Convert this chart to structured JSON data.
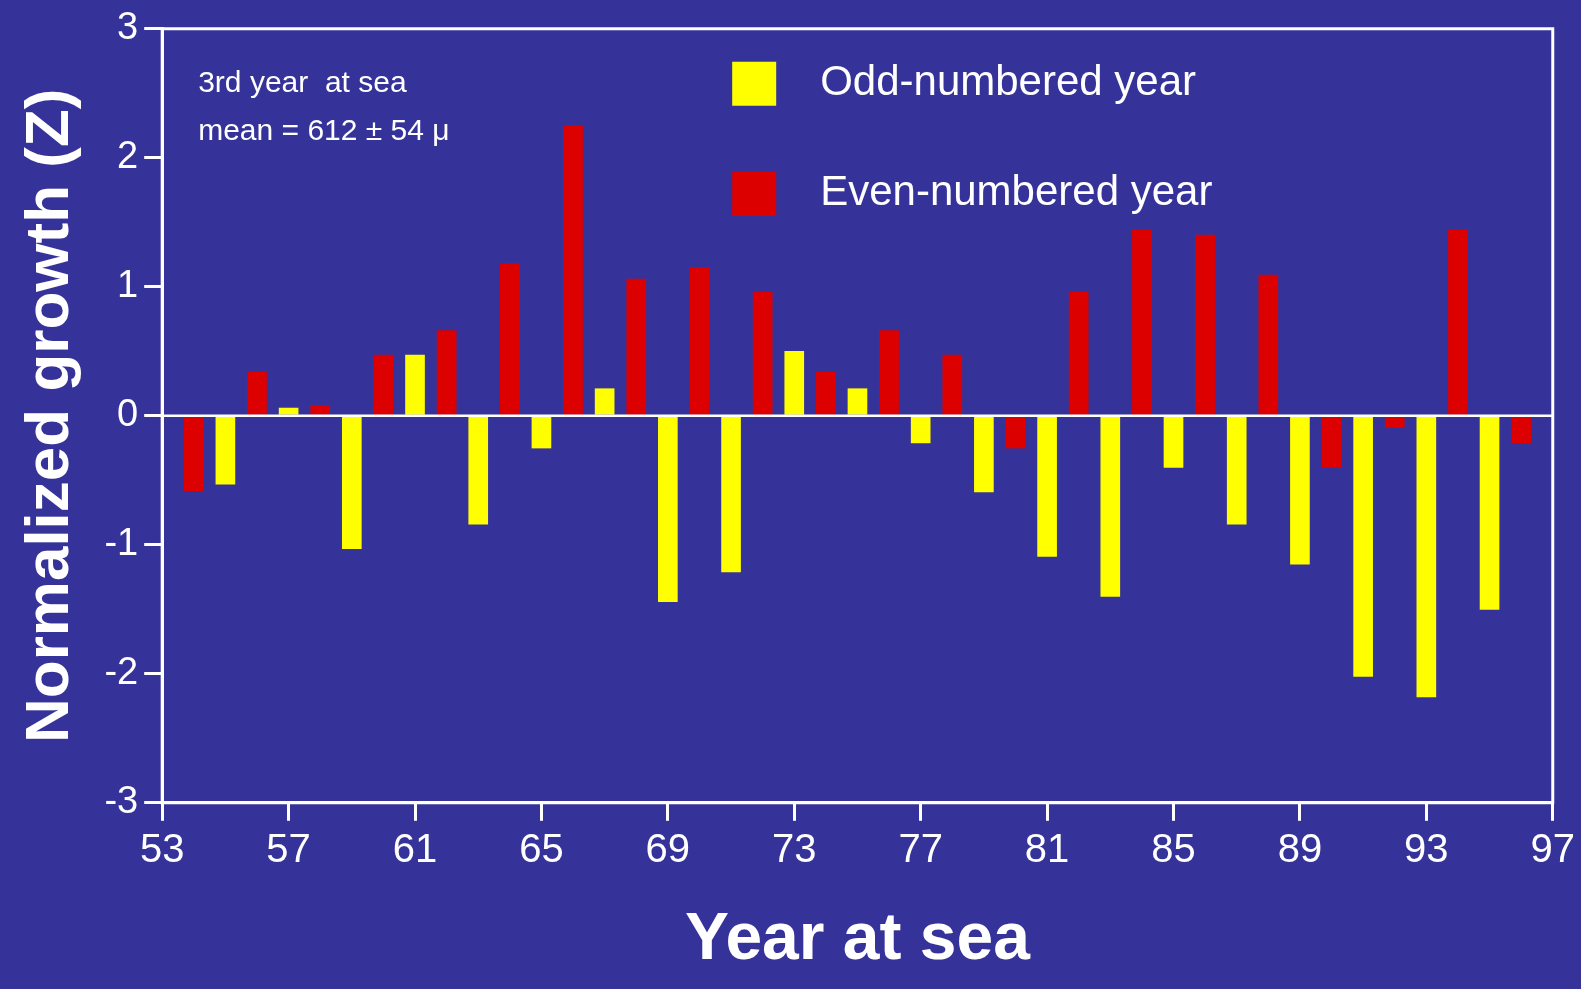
{
  "chart_data": {
    "type": "bar",
    "xlabel": "Year at sea",
    "ylabel": "Normalized growth (Z)",
    "annotations": [
      "3rd year  at sea",
      "mean = 612 ± 54 μ"
    ],
    "xlim": [
      53,
      97
    ],
    "xticks": [
      53,
      57,
      61,
      65,
      69,
      73,
      77,
      81,
      85,
      89,
      93,
      97
    ],
    "ylim": [
      -3,
      3
    ],
    "yticks": [
      -3,
      -2,
      -1,
      0,
      1,
      2,
      3
    ],
    "series": [
      {
        "name": "Odd-numbered year",
        "color": "#ffff00",
        "x": [
          55,
          57,
          59,
          61,
          63,
          65,
          67,
          69,
          71,
          73,
          75,
          77,
          79,
          81,
          83,
          85,
          87,
          89,
          91,
          93,
          95
        ],
        "values": [
          -0.53,
          0.06,
          -1.03,
          0.47,
          -0.84,
          -0.25,
          0.21,
          -1.44,
          -1.21,
          0.5,
          0.21,
          -0.21,
          -0.59,
          -1.09,
          -1.4,
          -0.4,
          -0.84,
          -1.15,
          -2.02,
          -2.18,
          -1.5
        ]
      },
      {
        "name": "Even-numbered year",
        "color": "#dd0000",
        "x": [
          54,
          56,
          58,
          60,
          62,
          64,
          66,
          68,
          70,
          72,
          74,
          76,
          78,
          80,
          82,
          84,
          86,
          88,
          90,
          92,
          94,
          96
        ],
        "values": [
          -0.58,
          0.34,
          0.08,
          0.47,
          0.66,
          1.18,
          2.25,
          1.06,
          1.15,
          0.96,
          0.34,
          0.66,
          0.47,
          -0.25,
          0.96,
          1.44,
          1.4,
          1.09,
          -0.4,
          -0.09,
          1.44,
          -0.21
        ]
      }
    ],
    "ref_lines": [
      {
        "axis": "y",
        "value": 0,
        "color": "#ffffff"
      }
    ],
    "legend": "top",
    "grid": false
  }
}
